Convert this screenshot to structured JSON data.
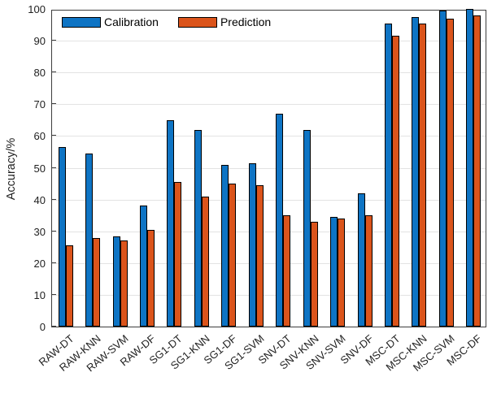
{
  "chart_data": {
    "type": "bar",
    "title": "",
    "xlabel": "",
    "ylabel": "Accuracy/%",
    "ylim": [
      0,
      100
    ],
    "yticks": [
      0,
      10,
      20,
      30,
      40,
      50,
      60,
      70,
      80,
      90,
      100
    ],
    "grid": true,
    "legend_position": "top-left-inside",
    "categories": [
      "RAW-DT",
      "RAW-KNN",
      "RAW-SVM",
      "RAW-DF",
      "SG1-DT",
      "SG1-KNN",
      "SG1-DF",
      "SG1-SVM",
      "SNV-DT",
      "SNV-KNN",
      "SNV-SVM",
      "SNV-DF",
      "MSC-DT",
      "MSC-KNN",
      "MSC-SVM",
      "MSC-DF"
    ],
    "series": [
      {
        "name": "Calibration",
        "color": "#0E74C4",
        "values": [
          56.5,
          54.5,
          28.5,
          38,
          65,
          62,
          51,
          51.5,
          67,
          62,
          34.5,
          42,
          95.5,
          97.5,
          99.5,
          100
        ]
      },
      {
        "name": "Prediction",
        "color": "#DB541B",
        "values": [
          25.5,
          28,
          27,
          30.5,
          45.5,
          41,
          45,
          44.5,
          35,
          33,
          34,
          35,
          91.5,
          95.5,
          97,
          98
        ]
      }
    ]
  },
  "colors": {
    "background": "#FFFFFF",
    "gridline": "#E3E3E3",
    "axis": "#3D3D3D",
    "text": "#1F1F1F"
  }
}
